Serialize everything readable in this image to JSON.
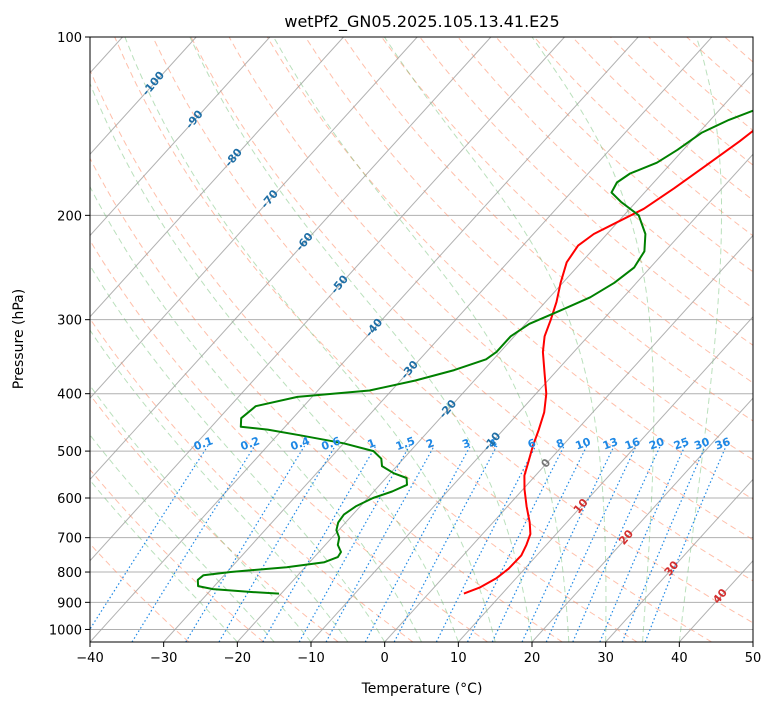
{
  "chart_data": {
    "type": "line",
    "title": "wetPf2_GN05.2025.105.13.41.E25",
    "xlabel": "Temperature (°C)",
    "ylabel": "Pressure (hPa)",
    "xlim": [
      -40,
      50
    ],
    "ylim": [
      1050,
      100
    ],
    "y_scale": "log",
    "grid": true,
    "x_ticks": [
      -40,
      -30,
      -20,
      -10,
      0,
      10,
      20,
      30,
      40,
      50
    ],
    "y_ticks": [
      100,
      200,
      300,
      400,
      500,
      600,
      700,
      800,
      900,
      1000
    ],
    "series": [
      {
        "color": "#ff0000",
        "points": [
          {
            "p": 870,
            "t": 4.8
          },
          {
            "p": 850,
            "t": 6.2
          },
          {
            "p": 820,
            "t": 7.3
          },
          {
            "p": 790,
            "t": 7.8
          },
          {
            "p": 750,
            "t": 7.9
          },
          {
            "p": 720,
            "t": 7.3
          },
          {
            "p": 690,
            "t": 6.5
          },
          {
            "p": 660,
            "t": 5.0
          },
          {
            "p": 620,
            "t": 2.6
          },
          {
            "p": 580,
            "t": 0.2
          },
          {
            "p": 550,
            "t": -1.5
          },
          {
            "p": 520,
            "t": -2.7
          },
          {
            "p": 490,
            "t": -4.0
          },
          {
            "p": 460,
            "t": -5.2
          },
          {
            "p": 430,
            "t": -6.6
          },
          {
            "p": 400,
            "t": -8.6
          },
          {
            "p": 370,
            "t": -11.3
          },
          {
            "p": 340,
            "t": -14.2
          },
          {
            "p": 320,
            "t": -15.9
          },
          {
            "p": 300,
            "t": -17.1
          },
          {
            "p": 280,
            "t": -18.5
          },
          {
            "p": 260,
            "t": -20.3
          },
          {
            "p": 240,
            "t": -22.0
          },
          {
            "p": 225,
            "t": -22.5
          },
          {
            "p": 215,
            "t": -21.8
          },
          {
            "p": 205,
            "t": -20.0
          },
          {
            "p": 195,
            "t": -18.1
          },
          {
            "p": 180,
            "t": -16.5
          },
          {
            "p": 165,
            "t": -15.0
          },
          {
            "p": 150,
            "t": -13.4
          },
          {
            "p": 140,
            "t": -12.5
          },
          {
            "p": 130,
            "t": -11.5
          },
          {
            "p": 120,
            "t": -11.0
          },
          {
            "p": 110,
            "t": -10.2
          },
          {
            "p": 100,
            "t": -9.4
          }
        ]
      },
      {
        "color": "#008000",
        "points": [
          {
            "p": 870,
            "t": -20.3
          },
          {
            "p": 865,
            "t": -24.0
          },
          {
            "p": 855,
            "t": -29.8
          },
          {
            "p": 845,
            "t": -32.2
          },
          {
            "p": 825,
            "t": -33.0
          },
          {
            "p": 810,
            "t": -32.8
          },
          {
            "p": 800,
            "t": -29.5
          },
          {
            "p": 785,
            "t": -22.5
          },
          {
            "p": 770,
            "t": -18.0
          },
          {
            "p": 755,
            "t": -16.8
          },
          {
            "p": 740,
            "t": -17.0
          },
          {
            "p": 720,
            "t": -18.3
          },
          {
            "p": 700,
            "t": -19.0
          },
          {
            "p": 680,
            "t": -20.3
          },
          {
            "p": 660,
            "t": -21.0
          },
          {
            "p": 640,
            "t": -21.2
          },
          {
            "p": 620,
            "t": -20.6
          },
          {
            "p": 600,
            "t": -19.3
          },
          {
            "p": 585,
            "t": -17.5
          },
          {
            "p": 570,
            "t": -16.3
          },
          {
            "p": 555,
            "t": -17.2
          },
          {
            "p": 545,
            "t": -19.5
          },
          {
            "p": 530,
            "t": -22.0
          },
          {
            "p": 515,
            "t": -23.0
          },
          {
            "p": 500,
            "t": -25.0
          },
          {
            "p": 485,
            "t": -30.0
          },
          {
            "p": 470,
            "t": -37.0
          },
          {
            "p": 460,
            "t": -42.0
          },
          {
            "p": 455,
            "t": -46.0
          },
          {
            "p": 440,
            "t": -47.0
          },
          {
            "p": 420,
            "t": -46.5
          },
          {
            "p": 405,
            "t": -42.0
          },
          {
            "p": 395,
            "t": -33.0
          },
          {
            "p": 380,
            "t": -28.0
          },
          {
            "p": 365,
            "t": -24.0
          },
          {
            "p": 350,
            "t": -21.0
          },
          {
            "p": 340,
            "t": -20.5
          },
          {
            "p": 320,
            "t": -20.5
          },
          {
            "p": 305,
            "t": -19.5
          },
          {
            "p": 290,
            "t": -17.0
          },
          {
            "p": 275,
            "t": -14.5
          },
          {
            "p": 260,
            "t": -13.0
          },
          {
            "p": 245,
            "t": -12.2
          },
          {
            "p": 230,
            "t": -12.8
          },
          {
            "p": 215,
            "t": -14.8
          },
          {
            "p": 200,
            "t": -18.0
          },
          {
            "p": 190,
            "t": -22.0
          },
          {
            "p": 183,
            "t": -24.5
          },
          {
            "p": 176,
            "t": -25.0
          },
          {
            "p": 170,
            "t": -24.3
          },
          {
            "p": 163,
            "t": -22.0
          },
          {
            "p": 155,
            "t": -20.8
          },
          {
            "p": 145,
            "t": -19.6
          },
          {
            "p": 138,
            "t": -17.5
          },
          {
            "p": 132,
            "t": -14.8
          },
          {
            "p": 126,
            "t": -12.3
          },
          {
            "p": 120,
            "t": -10.8
          },
          {
            "p": 112,
            "t": -10.0
          },
          {
            "p": 106,
            "t": -9.7
          },
          {
            "p": 100,
            "t": -9.6
          }
        ]
      }
    ],
    "isotherms": [
      -100,
      -90,
      -80,
      -70,
      -60,
      -50,
      -40,
      -30,
      -20,
      -10,
      0,
      10,
      20,
      30,
      40,
      50
    ],
    "isotherm_labels": [
      {
        "t": -100,
        "p": 120
      },
      {
        "t": -90,
        "p": 138
      },
      {
        "t": -80,
        "p": 160
      },
      {
        "t": -70,
        "p": 188
      },
      {
        "t": -60,
        "p": 222
      },
      {
        "t": -50,
        "p": 262
      },
      {
        "t": -40,
        "p": 310
      },
      {
        "t": -30,
        "p": 365
      },
      {
        "t": -20,
        "p": 425
      },
      {
        "t": -10,
        "p": 482
      }
    ],
    "isotherm_label_color": "#1f6fa6",
    "mixing_ratios": [
      0.1,
      0.2,
      0.4,
      0.6,
      1,
      1.5,
      2,
      3,
      4,
      6,
      8,
      10,
      13,
      16,
      20,
      25,
      30,
      36
    ],
    "mixing_ratio_color": "#1e88e5",
    "lcl_isotherm_labels": [
      {
        "t": 0,
        "p": 525,
        "color": "#777777"
      },
      {
        "t": 10,
        "p": 620,
        "color": "#d32f2f"
      },
      {
        "t": 20,
        "p": 700,
        "color": "#d32f2f"
      },
      {
        "t": 30,
        "p": 790,
        "color": "#d32f2f"
      },
      {
        "t": 40,
        "p": 880,
        "color": "#d32f2f"
      }
    ],
    "dry_adiabat_color": "#ff8a65",
    "moist_adiabat_color": "#66bb6a",
    "temperature_color": "#ff0000",
    "dewpoint_color": "#008000"
  }
}
